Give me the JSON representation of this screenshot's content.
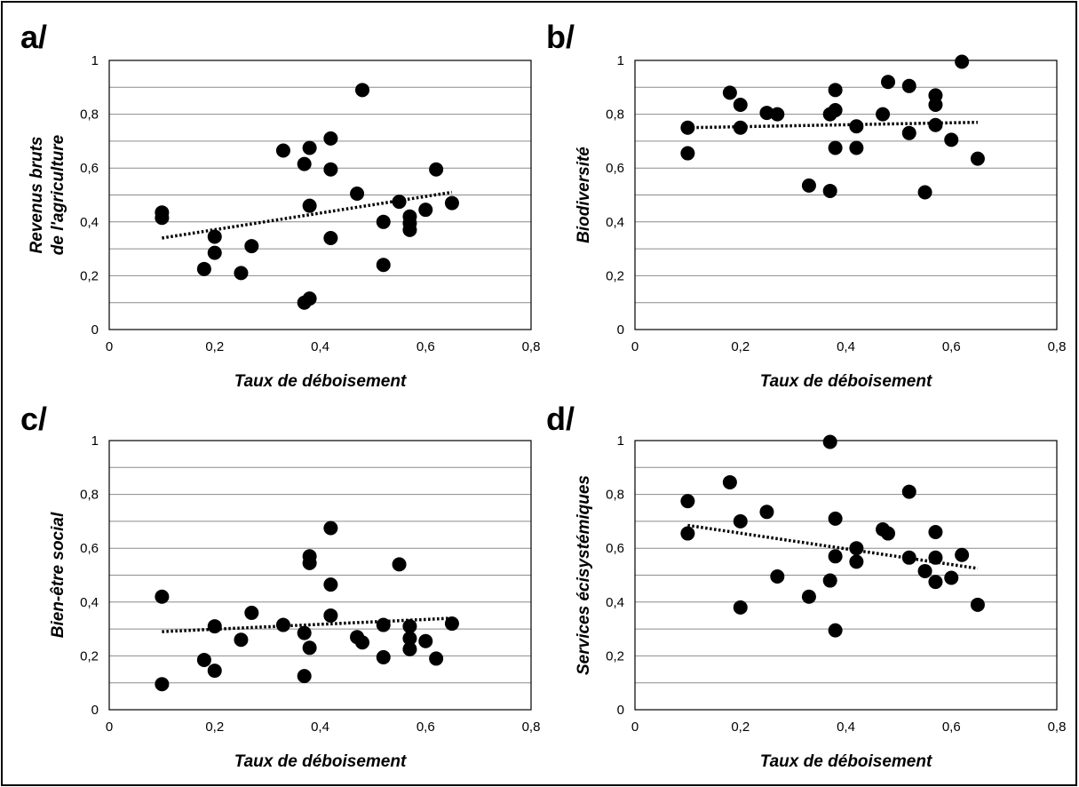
{
  "chart_data": [
    {
      "type": "scatter",
      "panel": "a/",
      "xlabel": "Taux de déboisement",
      "ylabel": [
        "Revenus bruts",
        "de l'agriculture"
      ],
      "xlim": [
        0,
        0.8
      ],
      "ylim": [
        0,
        1
      ],
      "xticks": [
        "0",
        "0,2",
        "0,4",
        "0,6",
        "0,8"
      ],
      "yticks": [
        "0",
        "0,2",
        "0,4",
        "0,6",
        "0,8",
        "1"
      ],
      "grid": "horizontal",
      "trendline": {
        "x": [
          0.1,
          0.65
        ],
        "y": [
          0.34,
          0.51
        ]
      },
      "points": [
        [
          0.1,
          0.435
        ],
        [
          0.1,
          0.415
        ],
        [
          0.18,
          0.225
        ],
        [
          0.2,
          0.345
        ],
        [
          0.2,
          0.285
        ],
        [
          0.25,
          0.21
        ],
        [
          0.27,
          0.31
        ],
        [
          0.33,
          0.665
        ],
        [
          0.37,
          0.615
        ],
        [
          0.37,
          0.1
        ],
        [
          0.38,
          0.675
        ],
        [
          0.38,
          0.46
        ],
        [
          0.38,
          0.115
        ],
        [
          0.42,
          0.71
        ],
        [
          0.42,
          0.595
        ],
        [
          0.42,
          0.34
        ],
        [
          0.47,
          0.505
        ],
        [
          0.48,
          0.89
        ],
        [
          0.52,
          0.4
        ],
        [
          0.52,
          0.24
        ],
        [
          0.55,
          0.475
        ],
        [
          0.57,
          0.42
        ],
        [
          0.57,
          0.395
        ],
        [
          0.57,
          0.37
        ],
        [
          0.6,
          0.445
        ],
        [
          0.62,
          0.595
        ],
        [
          0.65,
          0.47
        ]
      ]
    },
    {
      "type": "scatter",
      "panel": "b/",
      "xlabel": "Taux de déboisement",
      "ylabel": [
        "Biodiversité"
      ],
      "xlim": [
        0,
        0.8
      ],
      "ylim": [
        0,
        1
      ],
      "xticks": [
        "0",
        "0,2",
        "0,4",
        "0,6",
        "0,8"
      ],
      "yticks": [
        "0",
        "0,2",
        "0,4",
        "0,6",
        "0,8",
        "1"
      ],
      "grid": "horizontal",
      "trendline": {
        "x": [
          0.1,
          0.65
        ],
        "y": [
          0.75,
          0.77
        ]
      },
      "points": [
        [
          0.1,
          0.75
        ],
        [
          0.1,
          0.655
        ],
        [
          0.18,
          0.88
        ],
        [
          0.2,
          0.835
        ],
        [
          0.2,
          0.75
        ],
        [
          0.25,
          0.805
        ],
        [
          0.27,
          0.8
        ],
        [
          0.33,
          0.535
        ],
        [
          0.37,
          0.8
        ],
        [
          0.37,
          0.515
        ],
        [
          0.38,
          0.89
        ],
        [
          0.38,
          0.815
        ],
        [
          0.38,
          0.675
        ],
        [
          0.42,
          0.755
        ],
        [
          0.42,
          0.675
        ],
        [
          0.47,
          0.8
        ],
        [
          0.48,
          0.92
        ],
        [
          0.52,
          0.905
        ],
        [
          0.52,
          0.73
        ],
        [
          0.55,
          0.51
        ],
        [
          0.57,
          0.87
        ],
        [
          0.57,
          0.835
        ],
        [
          0.57,
          0.76
        ],
        [
          0.6,
          0.705
        ],
        [
          0.62,
          0.995
        ],
        [
          0.65,
          0.635
        ]
      ]
    },
    {
      "type": "scatter",
      "panel": "c/",
      "xlabel": "Taux de déboisement",
      "ylabel": [
        "Bien-être social"
      ],
      "xlim": [
        0,
        0.8
      ],
      "ylim": [
        0,
        1
      ],
      "xticks": [
        "0",
        "0,2",
        "0,4",
        "0,6",
        "0,8"
      ],
      "yticks": [
        "0",
        "0,2",
        "0,4",
        "0,6",
        "0,8",
        "1"
      ],
      "grid": "horizontal",
      "trendline": {
        "x": [
          0.1,
          0.65
        ],
        "y": [
          0.29,
          0.34
        ]
      },
      "points": [
        [
          0.1,
          0.42
        ],
        [
          0.1,
          0.095
        ],
        [
          0.18,
          0.185
        ],
        [
          0.2,
          0.31
        ],
        [
          0.2,
          0.145
        ],
        [
          0.25,
          0.26
        ],
        [
          0.27,
          0.36
        ],
        [
          0.33,
          0.315
        ],
        [
          0.37,
          0.285
        ],
        [
          0.37,
          0.125
        ],
        [
          0.38,
          0.57
        ],
        [
          0.38,
          0.545
        ],
        [
          0.38,
          0.23
        ],
        [
          0.42,
          0.675
        ],
        [
          0.42,
          0.465
        ],
        [
          0.42,
          0.35
        ],
        [
          0.47,
          0.27
        ],
        [
          0.48,
          0.25
        ],
        [
          0.52,
          0.315
        ],
        [
          0.52,
          0.195
        ],
        [
          0.55,
          0.54
        ],
        [
          0.57,
          0.31
        ],
        [
          0.57,
          0.265
        ],
        [
          0.57,
          0.225
        ],
        [
          0.6,
          0.255
        ],
        [
          0.62,
          0.19
        ],
        [
          0.65,
          0.32
        ]
      ]
    },
    {
      "type": "scatter",
      "panel": "d/",
      "xlabel": "Taux de déboisement",
      "ylabel": [
        "Services écisystémiques"
      ],
      "xlim": [
        0,
        0.8
      ],
      "ylim": [
        0,
        1
      ],
      "xticks": [
        "0",
        "0,2",
        "0,4",
        "0,6",
        "0,8"
      ],
      "yticks": [
        "0",
        "0,2",
        "0,4",
        "0,6",
        "0,8",
        "1"
      ],
      "grid": "horizontal",
      "trendline": {
        "x": [
          0.1,
          0.65
        ],
        "y": [
          0.685,
          0.525
        ]
      },
      "points": [
        [
          0.1,
          0.775
        ],
        [
          0.1,
          0.655
        ],
        [
          0.18,
          0.845
        ],
        [
          0.2,
          0.7
        ],
        [
          0.2,
          0.38
        ],
        [
          0.25,
          0.735
        ],
        [
          0.27,
          0.495
        ],
        [
          0.33,
          0.42
        ],
        [
          0.37,
          0.995
        ],
        [
          0.37,
          0.48
        ],
        [
          0.38,
          0.71
        ],
        [
          0.38,
          0.57
        ],
        [
          0.38,
          0.295
        ],
        [
          0.42,
          0.6
        ],
        [
          0.42,
          0.55
        ],
        [
          0.47,
          0.67
        ],
        [
          0.48,
          0.655
        ],
        [
          0.52,
          0.81
        ],
        [
          0.52,
          0.565
        ],
        [
          0.55,
          0.515
        ],
        [
          0.57,
          0.66
        ],
        [
          0.57,
          0.565
        ],
        [
          0.57,
          0.475
        ],
        [
          0.6,
          0.49
        ],
        [
          0.62,
          0.575
        ],
        [
          0.65,
          0.39
        ]
      ]
    }
  ]
}
